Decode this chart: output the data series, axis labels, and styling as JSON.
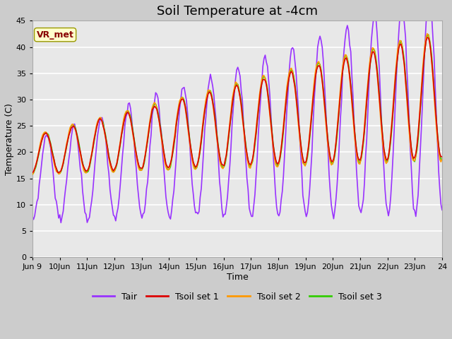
{
  "title": "Soil Temperature at -4cm",
  "xlabel": "Time",
  "ylabel": "Temperature (C)",
  "ylim": [
    0,
    45
  ],
  "yticks": [
    0,
    5,
    10,
    15,
    20,
    25,
    30,
    35,
    40,
    45
  ],
  "colors": {
    "Tair": "#9933ff",
    "Tsoil1": "#dd0000",
    "Tsoil2": "#ff9900",
    "Tsoil3": "#33cc00"
  },
  "legend_labels": [
    "Tair",
    "Tsoil set 1",
    "Tsoil set 2",
    "Tsoil set 3"
  ],
  "fig_bg_color": "#cccccc",
  "plot_bg_color": "#e8e8e8",
  "annotation_text": "VR_met",
  "annotation_color": "#880000",
  "annotation_bg": "#ffffcc",
  "annotation_edge": "#999900",
  "grid_color": "#ffffff",
  "title_fontsize": 13,
  "axis_label_fontsize": 9,
  "tick_fontsize": 8
}
